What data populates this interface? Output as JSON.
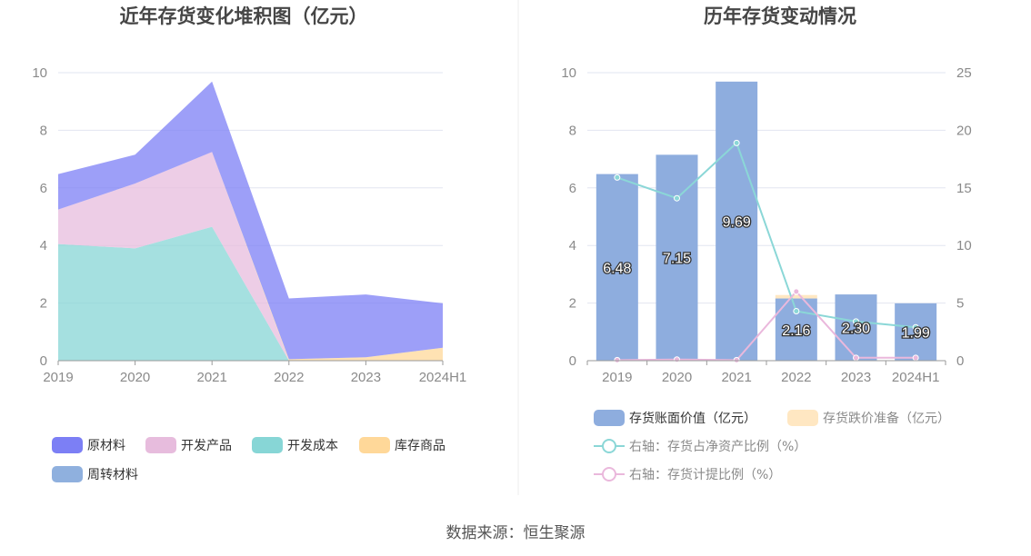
{
  "chart_data": [
    {
      "type": "area",
      "stacked": true,
      "title": "近年存货变化堆积图（亿元）",
      "categories": [
        "2019",
        "2020",
        "2021",
        "2022",
        "2023",
        "2024H1"
      ],
      "ylim": [
        0,
        10
      ],
      "yticks": [
        "0",
        "2",
        "4",
        "6",
        "8",
        "10"
      ],
      "grid": true,
      "legend_position": "bottom-left",
      "series": [
        {
          "name": "开发成本",
          "color": "#87d6d6",
          "values": [
            4.05,
            3.9,
            4.65,
            0,
            0,
            0
          ]
        },
        {
          "name": "开发产品",
          "color": "#e7bcdd",
          "values": [
            1.2,
            2.25,
            2.6,
            0,
            0,
            0
          ]
        },
        {
          "name": "库存商品",
          "color": "#ffd899",
          "values": [
            0,
            0,
            0,
            0.05,
            0.12,
            0.45
          ]
        },
        {
          "name": "原材料",
          "color": "#7c7ff5",
          "values": [
            1.23,
            1.0,
            2.44,
            2.11,
            2.18,
            1.54
          ]
        },
        {
          "name": "周转材料",
          "color": "#8fb0de",
          "values": [
            0,
            0,
            0,
            0,
            0,
            0
          ]
        }
      ],
      "legend_order": [
        "原材料",
        "开发产品",
        "开发成本",
        "库存商品",
        "周转材料"
      ]
    },
    {
      "type": "bar",
      "title": "历年存货变动情况",
      "categories": [
        "2019",
        "2020",
        "2021",
        "2022",
        "2023",
        "2024H1"
      ],
      "ylim": [
        0,
        10
      ],
      "yticks": [
        "0",
        "2",
        "4",
        "6",
        "8",
        "10"
      ],
      "y2lim": [
        0,
        25
      ],
      "y2ticks": [
        "0",
        "5",
        "10",
        "15",
        "20",
        "25"
      ],
      "grid": true,
      "legend_position": "bottom",
      "bar_series": [
        {
          "name": "存货账面价值（亿元）",
          "color": "#8eadde",
          "values": [
            6.48,
            7.15,
            9.69,
            2.16,
            2.3,
            1.99
          ],
          "labels": [
            "6.48",
            "7.15",
            "9.69",
            "2.16",
            "2.30",
            "1.99"
          ]
        },
        {
          "name": "存货跌价准备（亿元）",
          "color": "#ffe7c2",
          "values": [
            0,
            0,
            0,
            0.12,
            0,
            0
          ]
        }
      ],
      "line_series": [
        {
          "name": "右轴：存货占净资产比例（%）",
          "color": "#8bd7d7",
          "axis": "right",
          "values": [
            15.9,
            14.1,
            18.9,
            4.3,
            3.4,
            2.9
          ]
        },
        {
          "name": "右轴：存货计提比例（%）",
          "color": "#eab8dc",
          "axis": "right",
          "values": [
            0.05,
            0.1,
            0.05,
            6.0,
            0.25,
            0.25
          ]
        }
      ]
    }
  ],
  "source_text": "数据来源：恒生聚源"
}
